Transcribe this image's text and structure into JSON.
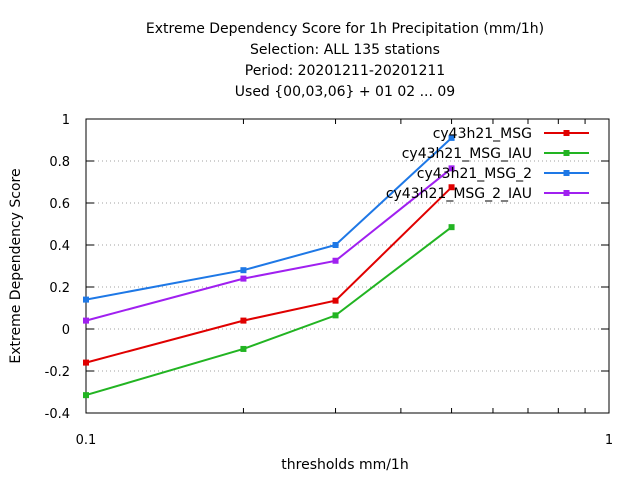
{
  "chart_data": {
    "type": "line",
    "title_lines": [
      "Extreme Dependency Score  for 1h Precipitation (mm/1h)",
      "Selection: ALL    135 stations",
      "Period: 20201211-20201211",
      "Used {00,03,06} + 01 02 ... 09"
    ],
    "xlabel": "thresholds mm/1h",
    "ylabel": "Extreme Dependency Score",
    "x_scale": "log",
    "xlim": [
      0.1,
      1
    ],
    "ylim": [
      -0.4,
      1
    ],
    "x_tick_labels": [
      "0.1",
      "1"
    ],
    "y_ticks": [
      -0.4,
      -0.2,
      0,
      0.2,
      0.4,
      0.6,
      0.8,
      1
    ],
    "y_tick_labels": [
      "-0.4",
      "-0.2",
      "0",
      "0.2",
      "0.4",
      "0.6",
      "0.8",
      "1"
    ],
    "grid": true,
    "legend_position": "top-right",
    "x": [
      0.1,
      0.2,
      0.3,
      0.5
    ],
    "series": [
      {
        "name": "cy43h21_MSG",
        "color": "#e00000",
        "values": [
          -0.16,
          0.04,
          0.135,
          0.675
        ]
      },
      {
        "name": "cy43h21_MSG_IAU",
        "color": "#22b422",
        "values": [
          -0.315,
          -0.095,
          0.065,
          0.485
        ]
      },
      {
        "name": "cy43h21_MSG_2",
        "color": "#1e78e6",
        "values": [
          0.14,
          0.28,
          0.4,
          0.91
        ]
      },
      {
        "name": "cy43h21_MSG_2_IAU",
        "color": "#a020f0",
        "values": [
          0.04,
          0.24,
          0.325,
          0.765
        ]
      }
    ]
  }
}
